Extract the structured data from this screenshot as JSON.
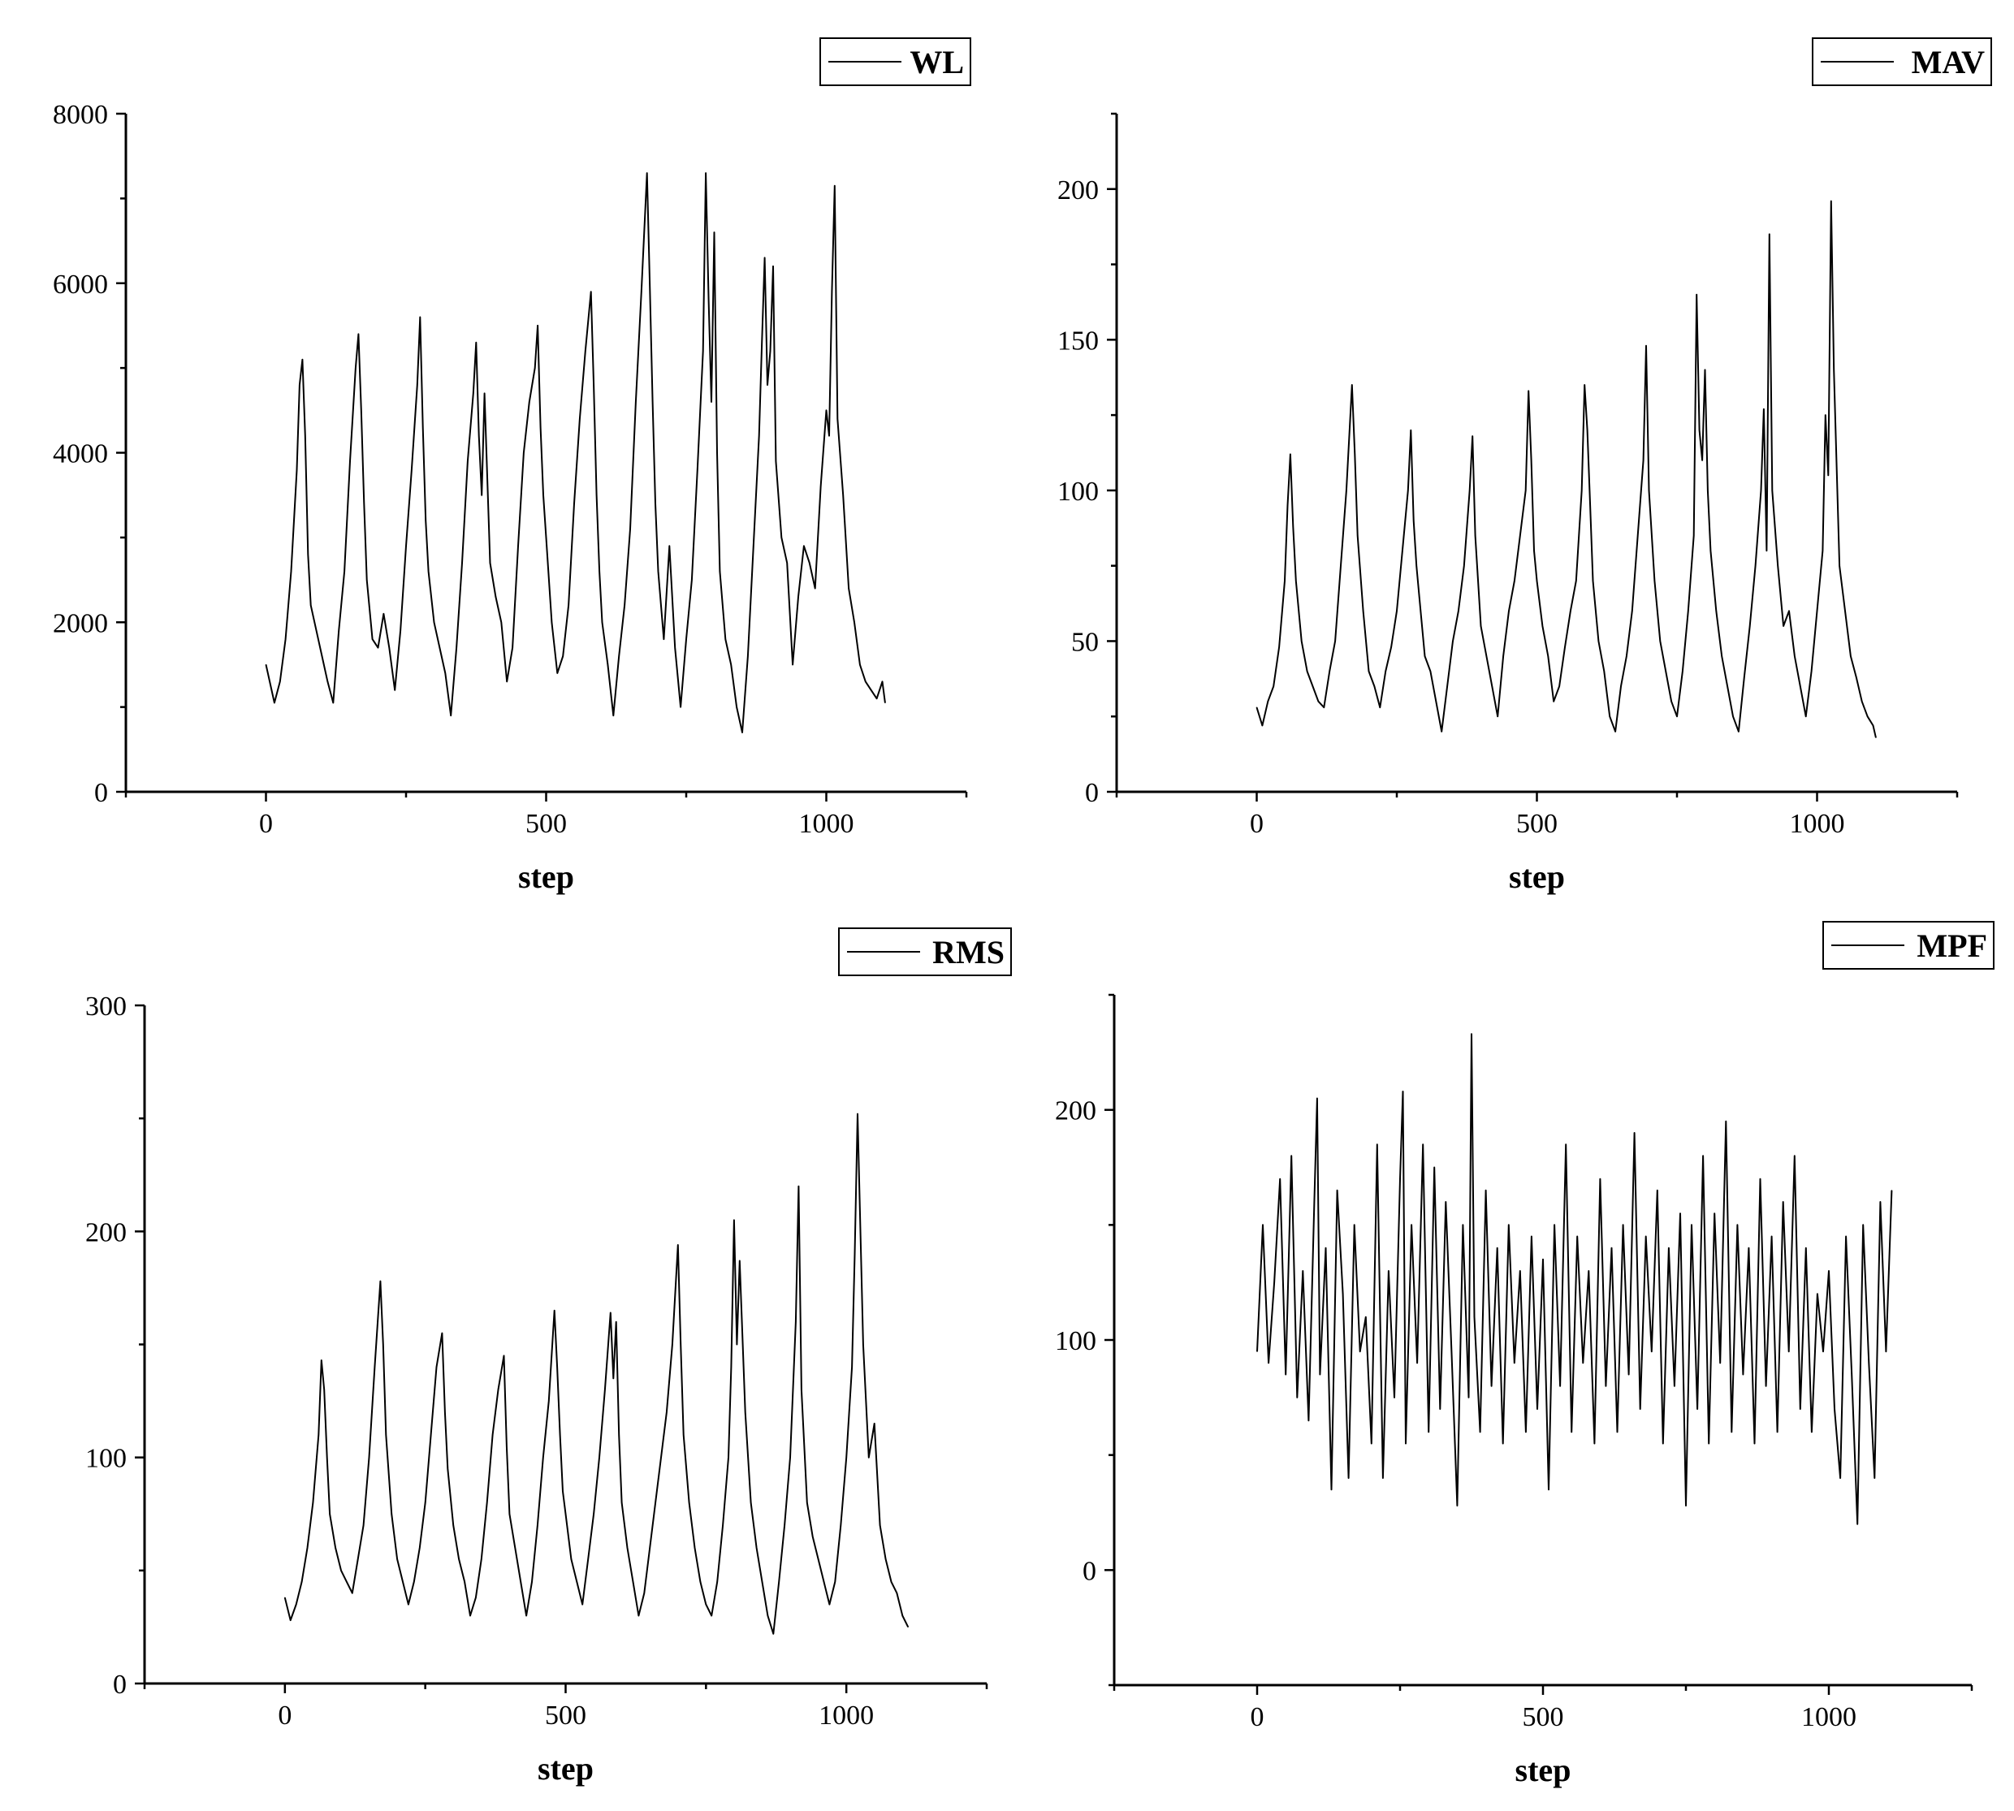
{
  "chart_data": [
    {
      "type": "line",
      "xlabel": "step",
      "ylabel": "",
      "xlim": [
        -250,
        1250
      ],
      "ylim": [
        0,
        8000
      ],
      "xticks": [
        0,
        500,
        1000
      ],
      "yticks": [
        0,
        2000,
        4000,
        6000,
        8000
      ],
      "legend_position": "top-right",
      "line_color": "#000000",
      "series": [
        {
          "name": "WL",
          "x": [
            0,
            15,
            25,
            35,
            45,
            55,
            60,
            65,
            70,
            75,
            80,
            90,
            100,
            110,
            120,
            130,
            140,
            150,
            160,
            165,
            170,
            175,
            180,
            190,
            200,
            210,
            220,
            230,
            240,
            250,
            260,
            270,
            275,
            280,
            285,
            290,
            300,
            310,
            320,
            330,
            340,
            350,
            360,
            370,
            375,
            380,
            385,
            390,
            400,
            410,
            420,
            430,
            440,
            450,
            460,
            470,
            480,
            485,
            490,
            495,
            500,
            510,
            520,
            530,
            540,
            550,
            560,
            570,
            580,
            585,
            590,
            595,
            600,
            610,
            620,
            630,
            640,
            650,
            660,
            670,
            680,
            685,
            690,
            695,
            700,
            710,
            720,
            730,
            740,
            750,
            760,
            770,
            780,
            785,
            790,
            795,
            800,
            805,
            810,
            820,
            830,
            840,
            850,
            860,
            870,
            880,
            885,
            890,
            895,
            900,
            905,
            910,
            920,
            930,
            940,
            950,
            960,
            970,
            980,
            990,
            1000,
            1005,
            1010,
            1015,
            1020,
            1030,
            1040,
            1050,
            1060,
            1070,
            1080,
            1090,
            1100,
            1105
          ],
          "values": [
            1500,
            1050,
            1300,
            1800,
            2600,
            3800,
            4800,
            5100,
            4200,
            2800,
            2200,
            1900,
            1600,
            1300,
            1050,
            1900,
            2600,
            3900,
            5000,
            5400,
            4500,
            3400,
            2500,
            1800,
            1700,
            2100,
            1700,
            1200,
            1900,
            2900,
            3800,
            4800,
            5600,
            4300,
            3200,
            2600,
            2000,
            1700,
            1400,
            900,
            1700,
            2700,
            3900,
            4700,
            5300,
            4200,
            3500,
            4700,
            2700,
            2300,
            2000,
            1300,
            1700,
            2900,
            4000,
            4600,
            5000,
            5500,
            4300,
            3500,
            3000,
            2000,
            1400,
            1600,
            2200,
            3400,
            4400,
            5200,
            5900,
            4800,
            3500,
            2600,
            2000,
            1500,
            900,
            1600,
            2200,
            3100,
            4600,
            5900,
            7300,
            6000,
            4600,
            3400,
            2600,
            1800,
            2900,
            1700,
            1000,
            1800,
            2500,
            3800,
            5200,
            7300,
            5800,
            4600,
            6600,
            4000,
            2600,
            1800,
            1500,
            1000,
            700,
            1600,
            2900,
            4200,
            5300,
            6300,
            4800,
            5200,
            6200,
            3900,
            3000,
            2700,
            1500,
            2300,
            2900,
            2700,
            2400,
            3600,
            4500,
            4200,
            5900,
            7150,
            4400,
            3500,
            2400,
            2000,
            1500,
            1300,
            1200,
            1100,
            1300,
            1050
          ]
        }
      ]
    },
    {
      "type": "line",
      "xlabel": "step",
      "ylabel": "",
      "xlim": [
        -250,
        1250
      ],
      "ylim": [
        0,
        225
      ],
      "xticks": [
        0,
        500,
        1000
      ],
      "yticks": [
        0,
        50,
        100,
        150,
        200
      ],
      "legend_position": "top-right",
      "line_color": "#000000",
      "series": [
        {
          "name": "MAV",
          "x": [
            0,
            10,
            20,
            30,
            40,
            50,
            55,
            60,
            65,
            70,
            80,
            90,
            100,
            110,
            120,
            130,
            140,
            150,
            160,
            170,
            175,
            180,
            190,
            200,
            210,
            220,
            230,
            240,
            250,
            260,
            270,
            275,
            280,
            285,
            290,
            300,
            310,
            320,
            330,
            340,
            350,
            360,
            370,
            380,
            385,
            390,
            400,
            410,
            420,
            430,
            440,
            450,
            460,
            470,
            480,
            485,
            490,
            495,
            500,
            510,
            520,
            530,
            540,
            550,
            560,
            570,
            580,
            585,
            590,
            595,
            600,
            610,
            620,
            630,
            640,
            650,
            660,
            670,
            680,
            690,
            695,
            700,
            710,
            720,
            730,
            740,
            750,
            760,
            770,
            780,
            785,
            790,
            795,
            800,
            805,
            810,
            820,
            830,
            840,
            850,
            860,
            870,
            880,
            890,
            900,
            905,
            910,
            915,
            920,
            930,
            940,
            950,
            960,
            970,
            980,
            990,
            1000,
            1010,
            1015,
            1020,
            1025,
            1030,
            1040,
            1050,
            1060,
            1070,
            1080,
            1090,
            1100,
            1105
          ],
          "values": [
            28,
            22,
            30,
            35,
            48,
            70,
            95,
            112,
            88,
            70,
            50,
            40,
            35,
            30,
            28,
            40,
            50,
            75,
            100,
            135,
            112,
            85,
            60,
            40,
            35,
            28,
            40,
            48,
            60,
            80,
            100,
            120,
            90,
            75,
            65,
            45,
            40,
            30,
            20,
            35,
            50,
            60,
            75,
            100,
            118,
            85,
            55,
            45,
            35,
            25,
            45,
            60,
            70,
            85,
            100,
            133,
            110,
            80,
            70,
            55,
            45,
            30,
            35,
            48,
            60,
            70,
            100,
            135,
            120,
            95,
            70,
            50,
            40,
            25,
            20,
            35,
            45,
            60,
            85,
            110,
            148,
            100,
            70,
            50,
            40,
            30,
            25,
            40,
            60,
            85,
            165,
            120,
            110,
            140,
            100,
            80,
            60,
            45,
            35,
            25,
            20,
            38,
            55,
            75,
            100,
            127,
            80,
            185,
            100,
            75,
            55,
            60,
            45,
            35,
            25,
            40,
            60,
            80,
            125,
            105,
            196,
            140,
            75,
            60,
            45,
            38,
            30,
            25,
            22,
            18
          ]
        }
      ]
    },
    {
      "type": "line",
      "xlabel": "step",
      "ylabel": "",
      "xlim": [
        -250,
        1250
      ],
      "ylim": [
        0,
        300
      ],
      "xticks": [
        0,
        500,
        1000
      ],
      "yticks": [
        0,
        100,
        200,
        300
      ],
      "legend_position": "top-right",
      "line_color": "#000000",
      "series": [
        {
          "name": "RMS",
          "x": [
            0,
            10,
            20,
            30,
            40,
            50,
            60,
            65,
            70,
            75,
            80,
            90,
            100,
            110,
            120,
            130,
            140,
            150,
            160,
            170,
            175,
            180,
            190,
            200,
            210,
            220,
            230,
            240,
            250,
            260,
            270,
            280,
            285,
            290,
            300,
            310,
            320,
            330,
            340,
            350,
            360,
            370,
            380,
            390,
            395,
            400,
            410,
            420,
            430,
            440,
            450,
            460,
            470,
            480,
            485,
            490,
            495,
            500,
            510,
            520,
            530,
            540,
            550,
            560,
            570,
            580,
            585,
            590,
            595,
            600,
            610,
            620,
            630,
            640,
            650,
            660,
            670,
            680,
            690,
            700,
            705,
            710,
            720,
            730,
            740,
            750,
            760,
            770,
            780,
            790,
            795,
            800,
            805,
            810,
            820,
            830,
            840,
            850,
            860,
            870,
            880,
            890,
            900,
            910,
            915,
            920,
            930,
            940,
            950,
            960,
            970,
            980,
            990,
            1000,
            1010,
            1015,
            1020,
            1030,
            1040,
            1050,
            1060,
            1070,
            1080,
            1090,
            1100,
            1110
          ],
          "values": [
            38,
            28,
            35,
            45,
            60,
            80,
            110,
            143,
            130,
            100,
            75,
            60,
            50,
            45,
            40,
            55,
            70,
            100,
            140,
            178,
            150,
            110,
            75,
            55,
            45,
            35,
            45,
            60,
            80,
            110,
            140,
            155,
            120,
            95,
            70,
            55,
            45,
            30,
            38,
            55,
            80,
            110,
            130,
            145,
            105,
            75,
            60,
            45,
            30,
            45,
            70,
            100,
            125,
            165,
            140,
            110,
            85,
            75,
            55,
            45,
            35,
            55,
            75,
            100,
            130,
            164,
            135,
            160,
            110,
            80,
            60,
            45,
            30,
            40,
            60,
            80,
            100,
            120,
            150,
            194,
            150,
            110,
            80,
            60,
            45,
            35,
            30,
            45,
            70,
            100,
            140,
            205,
            150,
            187,
            120,
            80,
            60,
            45,
            30,
            22,
            45,
            70,
            100,
            160,
            220,
            130,
            80,
            65,
            55,
            45,
            35,
            45,
            70,
            100,
            140,
            190,
            252,
            150,
            100,
            115,
            70,
            55,
            45,
            40,
            30,
            25
          ]
        }
      ]
    },
    {
      "type": "line",
      "xlabel": "step",
      "ylabel": "",
      "xlim": [
        -250,
        1250
      ],
      "ylim": [
        -50,
        250
      ],
      "xticks": [
        0,
        500,
        1000
      ],
      "yticks": [
        0,
        100,
        200
      ],
      "legend_position": "top-right",
      "line_color": "#000000",
      "series": [
        {
          "name": "MPF",
          "x": [
            0,
            10,
            20,
            30,
            40,
            50,
            60,
            70,
            80,
            90,
            100,
            105,
            110,
            120,
            130,
            140,
            150,
            160,
            170,
            180,
            190,
            200,
            210,
            220,
            230,
            240,
            250,
            255,
            260,
            270,
            280,
            290,
            300,
            310,
            320,
            330,
            340,
            350,
            360,
            370,
            375,
            380,
            390,
            400,
            410,
            420,
            430,
            440,
            450,
            460,
            470,
            480,
            490,
            500,
            510,
            520,
            530,
            540,
            550,
            560,
            570,
            580,
            590,
            600,
            610,
            620,
            630,
            640,
            650,
            660,
            670,
            680,
            690,
            700,
            710,
            720,
            730,
            740,
            750,
            760,
            770,
            780,
            790,
            800,
            810,
            820,
            830,
            840,
            850,
            860,
            870,
            880,
            890,
            900,
            910,
            920,
            930,
            940,
            950,
            960,
            970,
            980,
            990,
            1000,
            1010,
            1020,
            1030,
            1040,
            1050,
            1060,
            1070,
            1080,
            1090,
            1100,
            1110
          ],
          "values": [
            95,
            150,
            90,
            125,
            170,
            85,
            180,
            75,
            130,
            65,
            160,
            205,
            85,
            140,
            35,
            165,
            120,
            40,
            150,
            95,
            110,
            55,
            185,
            40,
            130,
            75,
            170,
            208,
            55,
            150,
            90,
            185,
            60,
            175,
            70,
            160,
            95,
            28,
            150,
            75,
            233,
            110,
            60,
            165,
            80,
            140,
            55,
            150,
            90,
            130,
            60,
            145,
            70,
            135,
            35,
            150,
            80,
            185,
            60,
            145,
            90,
            130,
            55,
            170,
            80,
            140,
            60,
            150,
            85,
            190,
            70,
            145,
            95,
            165,
            55,
            140,
            80,
            155,
            28,
            150,
            70,
            180,
            55,
            155,
            90,
            195,
            60,
            150,
            85,
            140,
            55,
            170,
            80,
            145,
            60,
            160,
            95,
            180,
            70,
            140,
            60,
            120,
            95,
            130,
            70,
            40,
            145,
            85,
            20,
            150,
            90,
            40,
            160,
            95,
            165
          ]
        }
      ]
    }
  ]
}
